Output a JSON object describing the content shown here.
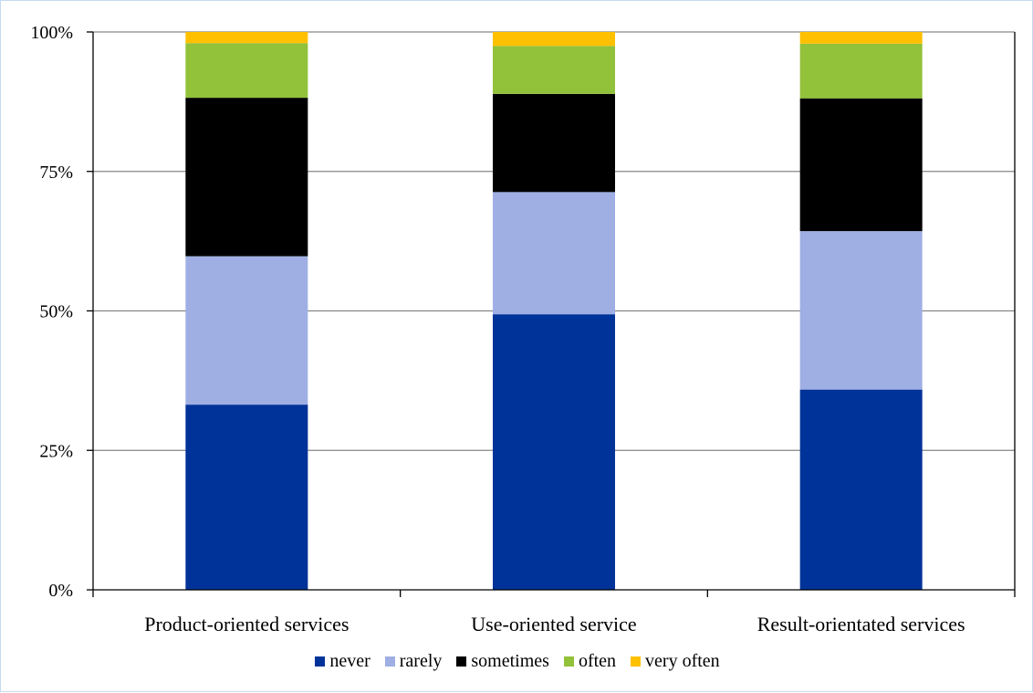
{
  "chart_data": {
    "type": "bar",
    "stacked": "percent",
    "categories": [
      "Product-oriented services",
      "Use-oriented service",
      "Result-orientated services"
    ],
    "series": [
      {
        "name": "never",
        "color": "#003399",
        "values": [
          33.2,
          49.4,
          35.9
        ]
      },
      {
        "name": "rarely",
        "color": "#9fafe4",
        "values": [
          26.6,
          21.9,
          28.4
        ]
      },
      {
        "name": "sometimes",
        "color": "#000000",
        "values": [
          28.4,
          17.6,
          23.8
        ]
      },
      {
        "name": "often",
        "color": "#92c13a",
        "values": [
          9.8,
          8.6,
          9.8
        ]
      },
      {
        "name": "very often",
        "color": "#ffc000",
        "values": [
          2.0,
          2.5,
          2.1
        ]
      }
    ],
    "y_ticks": [
      "0%",
      "25%",
      "50%",
      "75%",
      "100%"
    ],
    "ylim": [
      0,
      100
    ],
    "grid": true,
    "legend_position": "bottom"
  }
}
